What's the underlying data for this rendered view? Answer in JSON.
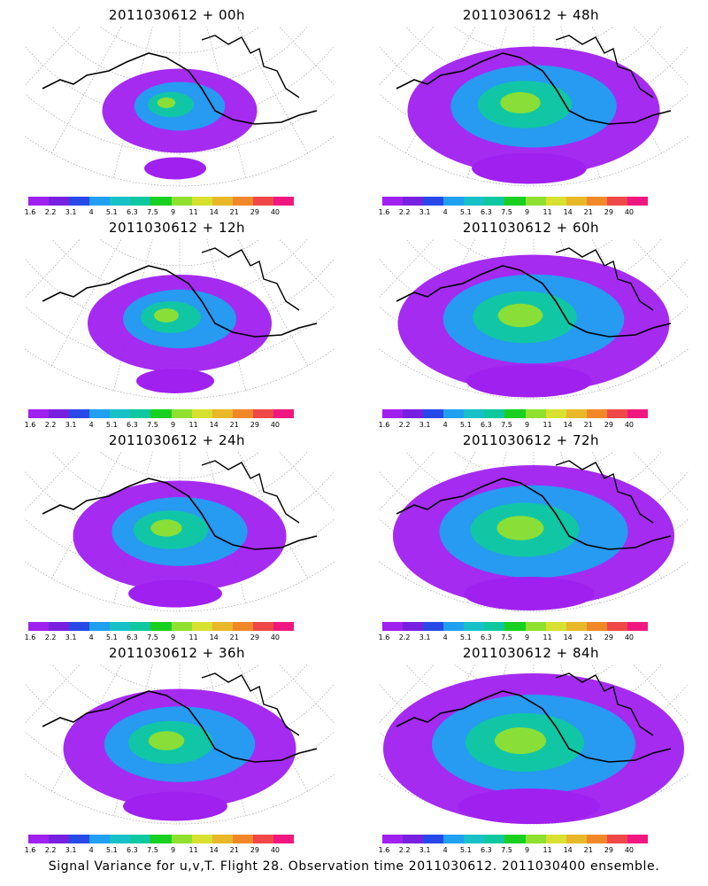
{
  "panels": [
    {
      "title": "2011030612 + 00h",
      "spread": 0.25
    },
    {
      "title": "2011030612 + 48h",
      "spread": 0.75
    },
    {
      "title": "2011030612 + 12h",
      "spread": 0.4
    },
    {
      "title": "2011030612 + 60h",
      "spread": 0.85
    },
    {
      "title": "2011030612 + 24h",
      "spread": 0.55
    },
    {
      "title": "2011030612 + 72h",
      "spread": 0.9
    },
    {
      "title": "2011030612 + 36h",
      "spread": 0.65
    },
    {
      "title": "2011030612 + 84h",
      "spread": 1.0
    }
  ],
  "colorbar": {
    "labels": [
      "1.6",
      "2.2",
      "3.1",
      "4",
      "5.1",
      "6.3",
      "7.5",
      "9",
      "11",
      "14",
      "21",
      "29",
      "40"
    ],
    "colors": [
      "#a020f0",
      "#7820e0",
      "#2848e8",
      "#20a0f0",
      "#18c0c8",
      "#10c8a0",
      "#18d020",
      "#90e030",
      "#d8e030",
      "#e8b828",
      "#f08828",
      "#f04848",
      "#f01880"
    ]
  },
  "footer": "Signal Variance for u,v,T. Flight 28. Observation time 2011030612. 2011030400 ensemble."
}
